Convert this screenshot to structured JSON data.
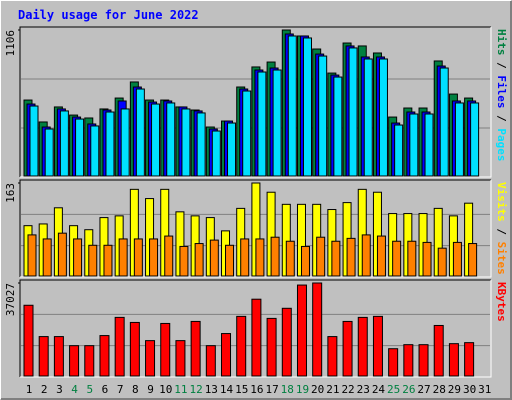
{
  "chart_data": [
    {
      "type": "bar",
      "title": "Daily usage for June 2022",
      "categories": [
        "1",
        "2",
        "3",
        "4",
        "5",
        "6",
        "7",
        "8",
        "9",
        "10",
        "11",
        "12",
        "13",
        "14",
        "15",
        "16",
        "17",
        "18",
        "19",
        "20",
        "21",
        "22",
        "23",
        "24",
        "25",
        "26",
        "27",
        "28",
        "29",
        "30",
        "31"
      ],
      "category_colors": [
        "#000000",
        "#000000",
        "#000000",
        "#008040",
        "#008040",
        "#000000",
        "#000000",
        "#000000",
        "#000000",
        "#000000",
        "#008040",
        "#008040",
        "#000000",
        "#000000",
        "#000000",
        "#000000",
        "#000000",
        "#008040",
        "#008040",
        "#000000",
        "#000000",
        "#000000",
        "#000000",
        "#000000",
        "#008040",
        "#008040",
        "#000000",
        "#000000",
        "#000000",
        "#000000",
        "#000000"
      ],
      "legend_separator": " / ",
      "series": [
        {
          "name": "Hits",
          "color": "#008040",
          "values": [
            579,
            414,
            527,
            466,
            444,
            512,
            594,
            715,
            579,
            579,
            527,
            504,
            376,
            421,
            677,
            828,
            865,
            1106,
            1061,
            963,
            782,
            1008,
            986,
            933,
            451,
            519,
            519,
            873,
            624,
            594,
            null
          ]
        },
        {
          "name": "Files",
          "color": "#0000ff",
          "values": [
            549,
            376,
            512,
            451,
            399,
            504,
            572,
            677,
            564,
            572,
            527,
            497,
            361,
            421,
            662,
            805,
            820,
            1076,
            1061,
            925,
            767,
            986,
            903,
            903,
            406,
            489,
            489,
            835,
            572,
            572,
            null
          ]
        },
        {
          "name": "Pages",
          "color": "#00e0ff",
          "values": [
            534,
            361,
            497,
            436,
            384,
            489,
            512,
            662,
            549,
            557,
            512,
            482,
            346,
            406,
            647,
            790,
            805,
            1061,
            1046,
            910,
            752,
            971,
            888,
            888,
            391,
            474,
            474,
            820,
            557,
            557,
            null
          ]
        }
      ],
      "ylim": [
        0,
        1106
      ],
      "yticks": [
        1106
      ]
    },
    {
      "type": "bar",
      "legend_separator": " / ",
      "series": [
        {
          "name": "Visits",
          "color": "#ffff00",
          "values": [
            89,
            92,
            120,
            89,
            82,
            103,
            106,
            152,
            136,
            152,
            113,
            106,
            103,
            80,
            119,
            163,
            147,
            126,
            126,
            126,
            117,
            129,
            152,
            147,
            110,
            110,
            110,
            119,
            106,
            128,
            null
          ]
        },
        {
          "name": "Sites",
          "color": "#ff8000",
          "values": [
            73,
            66,
            76,
            66,
            55,
            55,
            66,
            66,
            66,
            71,
            53,
            58,
            64,
            55,
            66,
            66,
            69,
            62,
            53,
            69,
            62,
            67,
            73,
            71,
            62,
            62,
            60,
            50,
            60,
            58,
            null
          ]
        }
      ],
      "ylim": [
        0,
        163
      ],
      "yticks": [
        163
      ]
    },
    {
      "type": "bar",
      "series": [
        {
          "name": "KBytes",
          "color": "#ff0000",
          "values": [
            28258,
            15920,
            15920,
            12338,
            12338,
            16318,
            23482,
            21492,
            14328,
            21094,
            14328,
            21890,
            12338,
            17114,
            23880,
            30646,
            23084,
            27064,
            36218,
            37027,
            15920,
            21890,
            23482,
            23880,
            11144,
            12736,
            12736,
            20298,
            13134,
            13532,
            null
          ]
        }
      ],
      "ylim": [
        0,
        37027
      ],
      "yticks": [
        37027
      ]
    }
  ]
}
